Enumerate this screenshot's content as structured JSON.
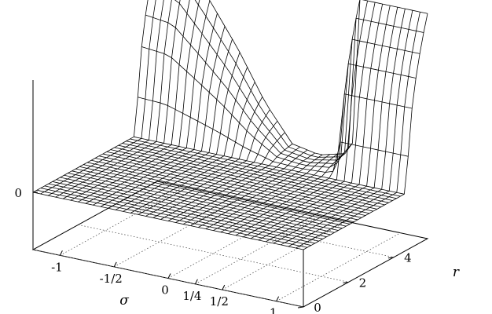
{
  "chart_data": {
    "type": "surface",
    "title": "",
    "xlabel": "σ",
    "ylabel": "r",
    "zlabel": "",
    "x_ticks": [
      {
        "value": -1,
        "label": "-1"
      },
      {
        "value": -0.5,
        "label": "-1/2"
      },
      {
        "value": 0,
        "label": "0"
      },
      {
        "value": 0.25,
        "label": "1/4"
      },
      {
        "value": 0.5,
        "label": "1/2"
      },
      {
        "value": 1,
        "label": "1"
      }
    ],
    "y_ticks": [
      {
        "value": 0,
        "label": "0"
      },
      {
        "value": 2,
        "label": "2"
      },
      {
        "value": 4,
        "label": "4"
      }
    ],
    "z_ticks": [
      {
        "value": 0,
        "label": "0"
      }
    ],
    "xlim": [
      -1.25,
      1.25
    ],
    "ylim": [
      0,
      5.5
    ],
    "grid": true,
    "surface": {
      "x_range": [
        -1.25,
        1.25
      ],
      "y_range": [
        0,
        5.5
      ],
      "flat_value": 0,
      "ridge": {
        "x_range": [
          -1.25,
          0.6
        ],
        "y_values": [
          4.6,
          5.5
        ],
        "height_profile": [
          {
            "x": -1.25,
            "z": 1.0
          },
          {
            "x": -1.0,
            "z": 0.97
          },
          {
            "x": -0.75,
            "z": 0.75
          },
          {
            "x": -0.5,
            "z": 0.52
          },
          {
            "x": -0.25,
            "z": 0.25
          },
          {
            "x": 0.0,
            "z": 0.05
          },
          {
            "x": 0.25,
            "z": 0.02
          },
          {
            "x": 0.5,
            "z": 0.06
          },
          {
            "x": 0.6,
            "z": 0.18
          }
        ]
      },
      "plateau": {
        "x_range": [
          0.6,
          1.25
        ],
        "y_values": [
          4.4,
          5.5
        ],
        "z": 0.95
      }
    }
  },
  "colors": {
    "mesh": "#000000",
    "hidden_grid": "#555555",
    "background": "#ffffff"
  }
}
